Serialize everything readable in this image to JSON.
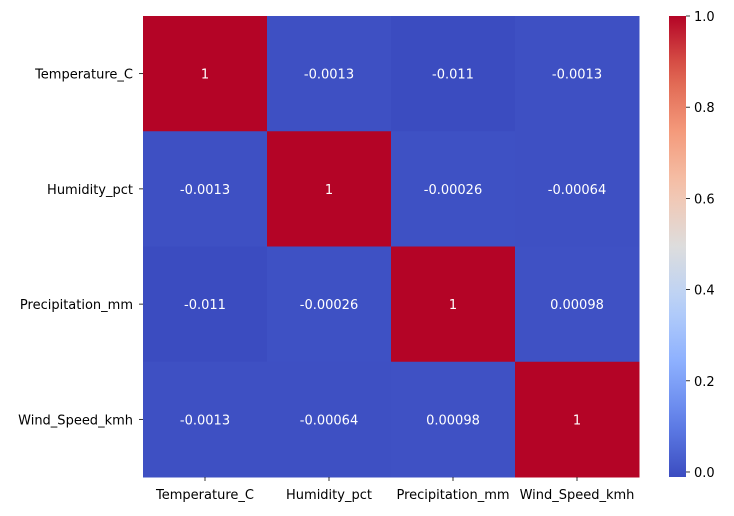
{
  "chart_data": {
    "type": "heatmap",
    "title": "",
    "xlabel": "",
    "ylabel": "",
    "rows": [
      "Temperature_C",
      "Humidity_pct",
      "Precipitation_mm",
      "Wind_Speed_kmh"
    ],
    "columns": [
      "Temperature_C",
      "Humidity_pct",
      "Precipitation_mm",
      "Wind_Speed_kmh"
    ],
    "values": [
      [
        1,
        -0.0013,
        -0.011,
        -0.0013
      ],
      [
        -0.0013,
        1,
        -0.00026,
        -0.00064
      ],
      [
        -0.011,
        -0.00026,
        1,
        0.00098
      ],
      [
        -0.0013,
        -0.00064,
        0.00098,
        1
      ]
    ],
    "cell_labels": [
      [
        "1",
        "-0.0013",
        "-0.011",
        "-0.0013"
      ],
      [
        "-0.0013",
        "1",
        "-0.00026",
        "-0.00064"
      ],
      [
        "-0.011",
        "-0.00026",
        "1",
        "0.00098"
      ],
      [
        "-0.0013",
        "-0.00064",
        "0.00098",
        "1"
      ]
    ],
    "colormap": "coolwarm",
    "colorbar": {
      "range": [
        -0.011,
        1
      ],
      "ticks": [
        0.0,
        0.2,
        0.4,
        0.6,
        0.8,
        1.0
      ],
      "tick_labels": [
        "0.0",
        "0.2",
        "0.4",
        "0.6",
        "0.8",
        "1.0"
      ],
      "placement": "right"
    },
    "annotation_color": "#ffffff"
  }
}
